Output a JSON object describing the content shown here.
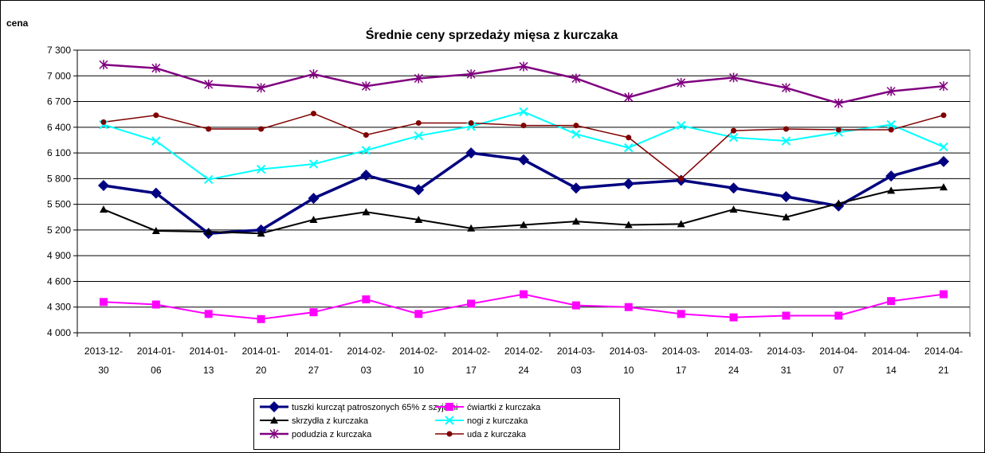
{
  "chart_data": {
    "type": "line",
    "title": "Średnie ceny sprzedaży mięsa z kurczaka",
    "y_label": "cena",
    "categories": [
      "2013-12-30",
      "2014-01-06",
      "2014-01-13",
      "2014-01-20",
      "2014-01-27",
      "2014-02-03",
      "2014-02-10",
      "2014-02-17",
      "2014-02-24",
      "2014-03-03",
      "2014-03-10",
      "2014-03-17",
      "2014-03-24",
      "2014-03-31",
      "2014-04-07",
      "2014-04-14",
      "2014-04-21"
    ],
    "ylim": [
      4000,
      7300
    ],
    "yticks": [
      {
        "value": 4000,
        "label": "4 000"
      },
      {
        "value": 4300,
        "label": "4 300"
      },
      {
        "value": 4600,
        "label": "4 600"
      },
      {
        "value": 4900,
        "label": "4 900"
      },
      {
        "value": 5200,
        "label": "5 200"
      },
      {
        "value": 5500,
        "label": "5 500"
      },
      {
        "value": 5800,
        "label": "5 800"
      },
      {
        "value": 6100,
        "label": "6 100"
      },
      {
        "value": 6400,
        "label": "6 400"
      },
      {
        "value": 6700,
        "label": "6 700"
      },
      {
        "value": 7000,
        "label": "7 000"
      },
      {
        "value": 7300,
        "label": "7 300"
      }
    ],
    "grid": true,
    "legend": "bottom",
    "series": [
      {
        "name": "tuszki kurcząt patroszonych 65% z szyjami",
        "color": "#000080",
        "marker": "diamond",
        "line_width": 3.5,
        "values": [
          5720,
          5630,
          5160,
          5200,
          5570,
          5840,
          5670,
          6100,
          6020,
          5690,
          5740,
          5780,
          5690,
          5590,
          5480,
          5830,
          6000
        ]
      },
      {
        "name": "ćwiartki z kurczaka",
        "color": "#ff00ff",
        "marker": "square",
        "line_width": 2,
        "values": [
          4360,
          4330,
          4220,
          4160,
          4240,
          4390,
          4220,
          4340,
          4450,
          4320,
          4300,
          4220,
          4180,
          4200,
          4200,
          4370,
          4450
        ]
      },
      {
        "name": "skrzydła z kurczaka",
        "color": "#000000",
        "marker": "triangle",
        "line_width": 2,
        "values": [
          5440,
          5190,
          5180,
          5160,
          5320,
          5410,
          5320,
          5220,
          5260,
          5300,
          5260,
          5270,
          5440,
          5350,
          5510,
          5660,
          5700
        ]
      },
      {
        "name": "nogi z kurczaka",
        "color": "#00ffff",
        "marker": "x",
        "line_width": 2,
        "values": [
          6430,
          6240,
          5790,
          5910,
          5970,
          6130,
          6300,
          6410,
          6580,
          6320,
          6160,
          6420,
          6280,
          6240,
          6340,
          6430,
          6170
        ]
      },
      {
        "name": "podudzia z kurczaka",
        "color": "#800080",
        "marker": "star",
        "line_width": 2.5,
        "values": [
          7130,
          7090,
          6900,
          6860,
          7020,
          6880,
          6970,
          7020,
          7110,
          6970,
          6750,
          6920,
          6980,
          6860,
          6680,
          6820,
          6880
        ]
      },
      {
        "name": "uda z kurczaka",
        "color": "#800000",
        "marker": "circle",
        "line_width": 1.5,
        "values": [
          6460,
          6540,
          6380,
          6380,
          6560,
          6310,
          6450,
          6450,
          6420,
          6420,
          6280,
          5800,
          6360,
          6380,
          6370,
          6370,
          6540
        ]
      }
    ]
  }
}
